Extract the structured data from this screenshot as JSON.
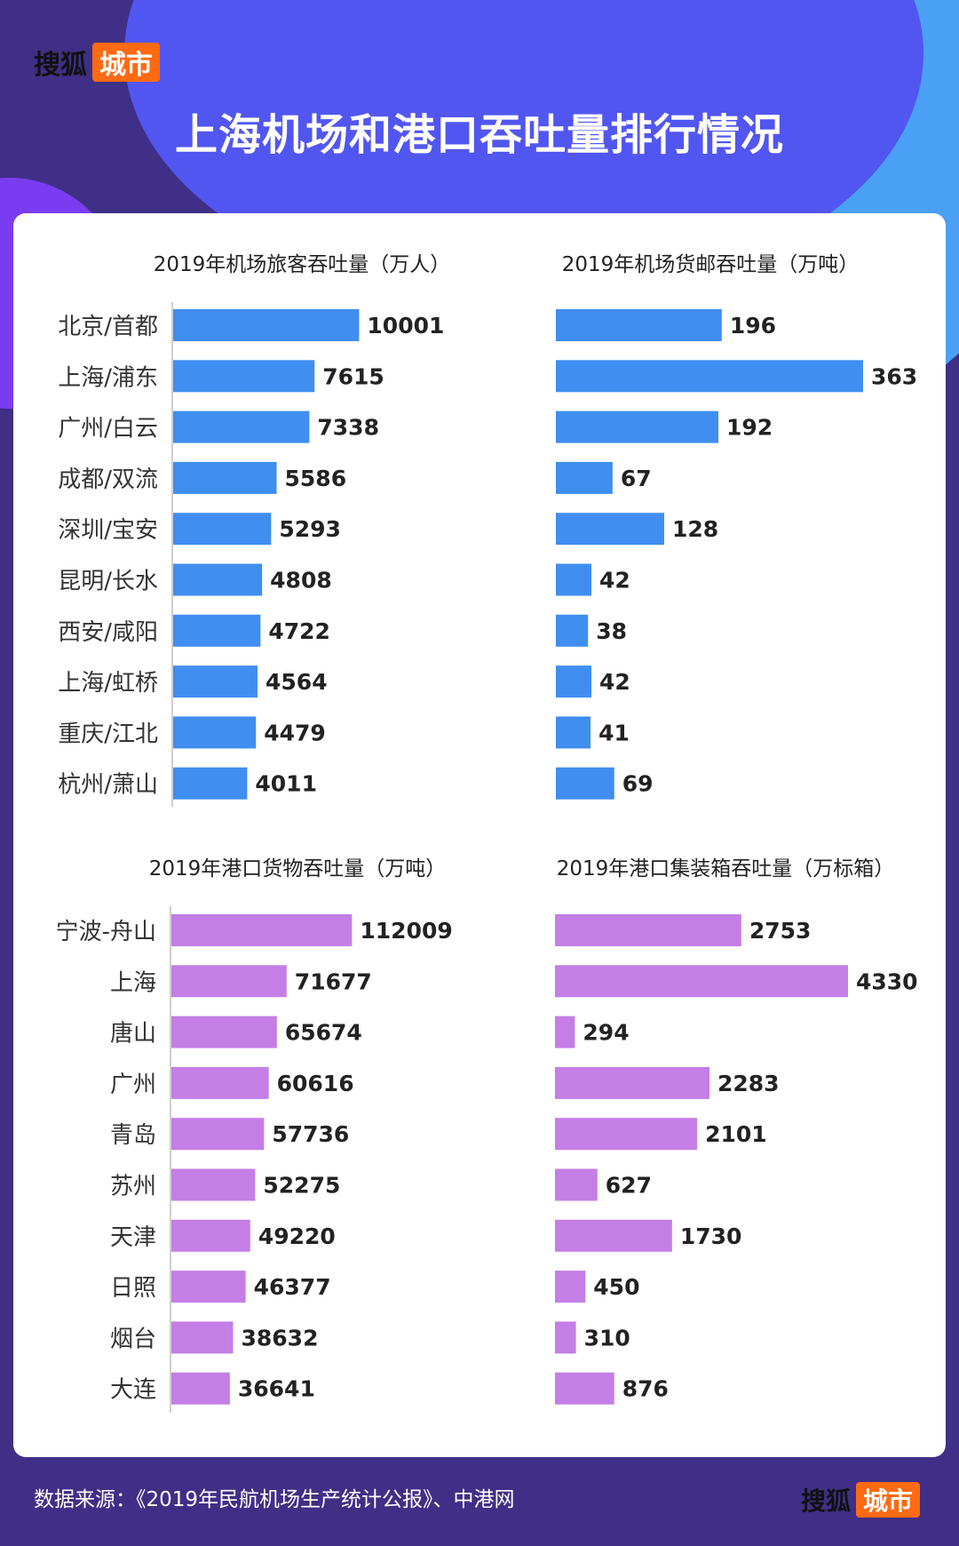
{
  "brand": {
    "name": "搜狐",
    "badge": "城市"
  },
  "header": {
    "title": "上海机场和港口吞吐量排行情况"
  },
  "footer": {
    "source": "数据来源：《2019年民航机场生产统计公报》、中港网"
  },
  "colors": {
    "airport_bar": "#3f8ef0",
    "port_bar": "#c47ee6",
    "background": "#3f2f86",
    "brand_badge": "#ff6a13"
  },
  "chart_data": [
    {
      "type": "bar",
      "orientation": "horizontal",
      "title": "2019年机场旅客吞吐量（万人）",
      "categories": [
        "北京/首都",
        "上海/浦东",
        "广州/白云",
        "成都/双流",
        "深圳/宝安",
        "昆明/长水",
        "西安/咸阳",
        "上海/虹桥",
        "重庆/江北",
        "杭州/萧山"
      ],
      "values": [
        10001,
        7615,
        7338,
        5586,
        5293,
        4808,
        4722,
        4564,
        4479,
        4011
      ],
      "xlim": [
        0,
        12500
      ]
    },
    {
      "type": "bar",
      "orientation": "horizontal",
      "title": "2019年机场货邮吞吐量（万吨）",
      "categories": [
        "北京/首都",
        "上海/浦东",
        "广州/白云",
        "成都/双流",
        "深圳/宝安",
        "昆明/长水",
        "西安/咸阳",
        "上海/虹桥",
        "重庆/江北",
        "杭州/萧山"
      ],
      "values": [
        196,
        363,
        192,
        67,
        128,
        42,
        38,
        42,
        41,
        69
      ],
      "xlim": [
        0,
        363
      ]
    },
    {
      "type": "bar",
      "orientation": "horizontal",
      "title": "2019年港口货物吞吐量（万吨）",
      "categories": [
        "宁波-舟山",
        "上海",
        "唐山",
        "广州",
        "青岛",
        "苏州",
        "天津",
        "日照",
        "烟台",
        "大连"
      ],
      "values": [
        112009,
        71677,
        65674,
        60616,
        57736,
        52275,
        49220,
        46377,
        38632,
        36641
      ],
      "xlim": [
        0,
        137000
      ]
    },
    {
      "type": "bar",
      "orientation": "horizontal",
      "title": "2019年港口集装箱吞吐量（万标箱）",
      "categories": [
        "宁波-舟山",
        "上海",
        "唐山",
        "广州",
        "青岛",
        "苏州",
        "天津",
        "日照",
        "烟台",
        "大连"
      ],
      "values": [
        2753,
        4330,
        294,
        2283,
        2101,
        627,
        1730,
        450,
        310,
        876
      ],
      "xlim": [
        0,
        4330
      ]
    }
  ]
}
